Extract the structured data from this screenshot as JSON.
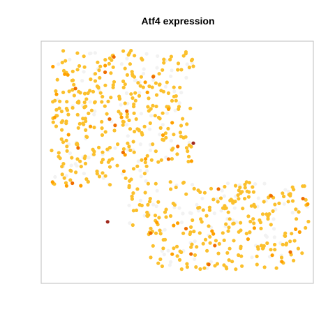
{
  "chart_data": {
    "type": "scatter",
    "title": "Atf4 expression",
    "xlabel": "",
    "ylabel": "",
    "xlim": [
      0,
      100
    ],
    "ylim": [
      0,
      100
    ],
    "grid": false,
    "axes_visible": false,
    "color_scale": {
      "low": "#f2f2f2",
      "mid_low": "#fbc02d",
      "mid": "#ffa000",
      "mid_high": "#ef6c00",
      "high": "#a0291d"
    },
    "layout_shape": "two lobes: large upper-left cluster and horizontal lower-right band forming an inverted L",
    "highlighted_points": [
      {
        "x": 56,
        "y": 58,
        "level": 0.95
      },
      {
        "x": 24,
        "y": 25,
        "level": 0.98
      },
      {
        "x": 64,
        "y": 15,
        "level": 0.9
      },
      {
        "x": 13,
        "y": 56,
        "level": 0.85
      },
      {
        "x": 12,
        "y": 81,
        "level": 0.85
      },
      {
        "x": 8,
        "y": 87,
        "level": 0.8
      }
    ]
  }
}
